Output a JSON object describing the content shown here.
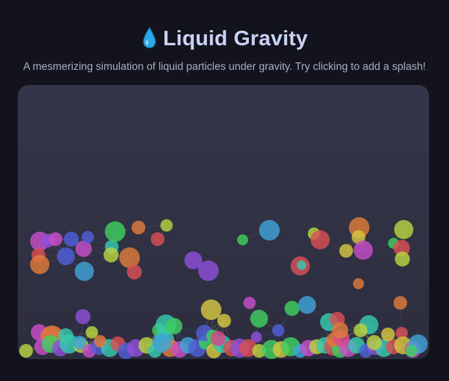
{
  "header": {
    "icon": "water-drop-icon",
    "title": "Liquid Gravity",
    "subtitle": "A mesmerizing simulation of liquid particles under gravity. Try clicking to add a splash!"
  },
  "colors": {
    "background": "#12131c",
    "canvas": "#313245",
    "title": "#c9d3f5",
    "subtitle": "#a9afc8",
    "drop": "#2ea8e6"
  }
}
